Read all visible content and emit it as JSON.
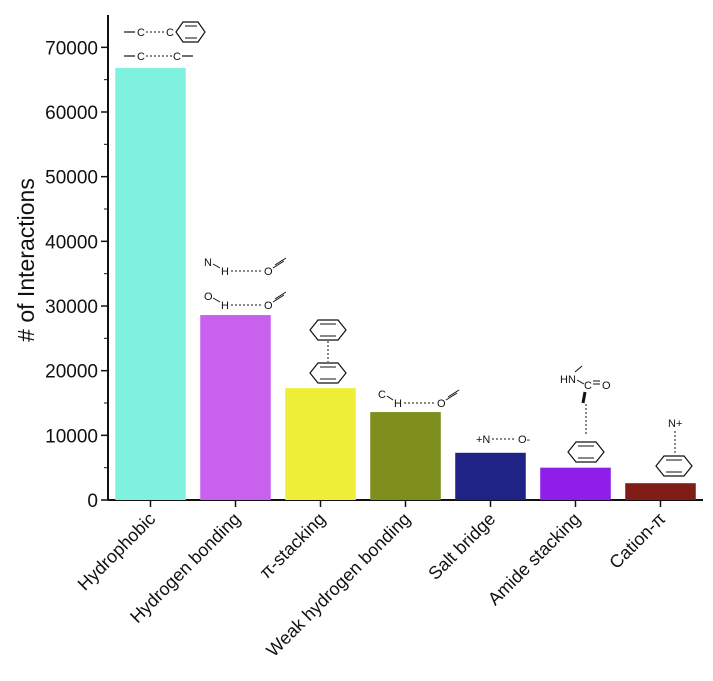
{
  "chart_data": {
    "type": "bar",
    "title": "",
    "xlabel": "",
    "ylabel": "# of Interactions",
    "ylim": [
      0,
      75000
    ],
    "yticks": [
      0,
      10000,
      20000,
      30000,
      40000,
      50000,
      60000,
      70000
    ],
    "grid": false,
    "categories": [
      "Hydrophobic",
      "Hydrogen bonding",
      "π-stacking",
      "Weak hydrogen bonding",
      "Salt bridge",
      "Amide stacking",
      "Cation-π"
    ],
    "values": [
      66800,
      28600,
      17300,
      13600,
      7300,
      5000,
      2600
    ],
    "colors": [
      "#7ff2df",
      "#c862ee",
      "#efef3a",
      "#7f8f1e",
      "#1f2385",
      "#8f1ee8",
      "#7f1d16"
    ]
  },
  "annotations": {
    "hydrophobic_1": [
      "C",
      "C"
    ],
    "hydrophobic_2": [
      "C",
      "C"
    ],
    "hbond_1": [
      "N",
      "H",
      "O"
    ],
    "hbond_2": [
      "O",
      "H",
      "O"
    ],
    "weak_hbond": [
      "C",
      "H",
      "O"
    ],
    "salt_bridge": [
      "+N",
      "O-"
    ],
    "amide": [
      "HN",
      "C",
      "O"
    ],
    "cation": [
      "N+"
    ]
  }
}
